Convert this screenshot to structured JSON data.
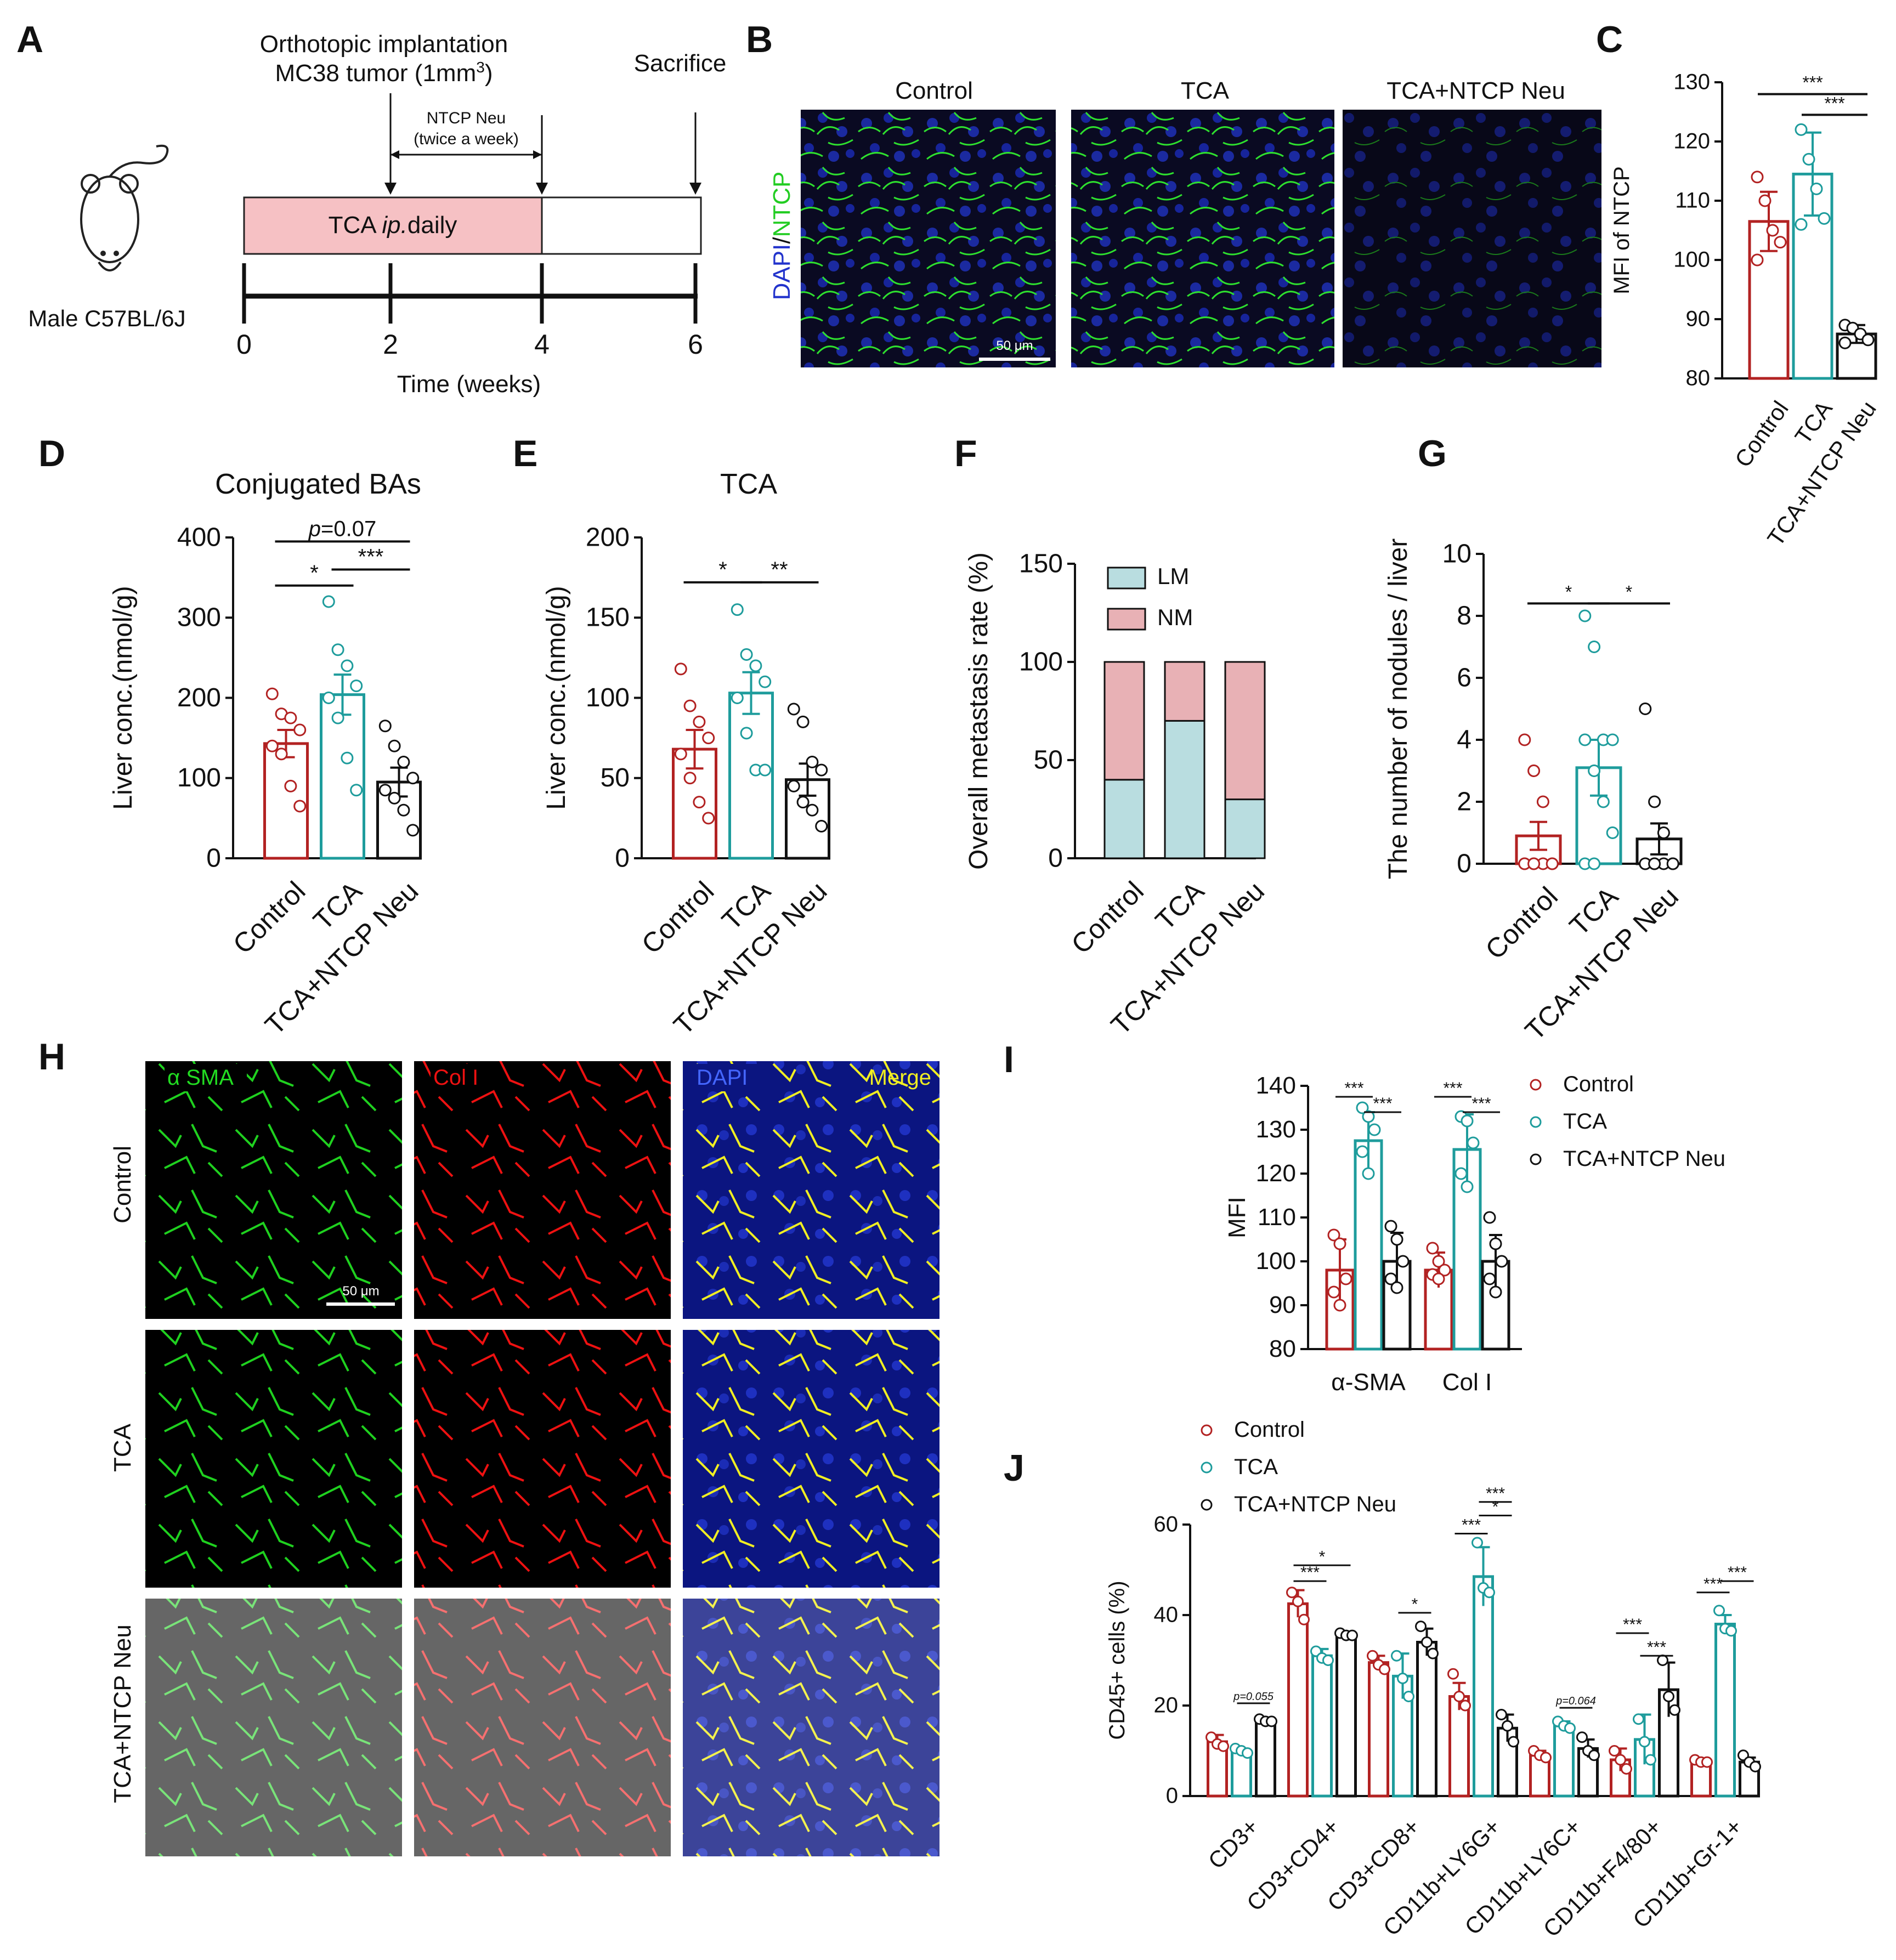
{
  "colors": {
    "control": "#b22222",
    "tca": "#1e9c9c",
    "neu": "#111111",
    "lm": "#b9dde0",
    "nm": "#e8b1b5",
    "pink_bar": "#f6c1c4",
    "dapi": "#2233cc",
    "ntcp": "#22cc22",
    "col": "#ee1111",
    "merge": "#f0ee22"
  },
  "panels": {
    "A": {
      "letter": "A",
      "impl_line1": "Orthotopic implantation",
      "impl_line2": "MC38 tumor (1mm",
      "impl_sup": "3",
      "impl_close": ")",
      "sacrifice": "Sacrifice",
      "neu_line1": "NTCP Neu",
      "neu_line2": "(twice a week)",
      "tca_bar_pre": "TCA ",
      "tca_bar_ital": "ip.",
      "tca_bar_post": "daily",
      "mouse": "Male C57BL/6J",
      "ticks": [
        "0",
        "2",
        "4",
        "6"
      ],
      "xlabel": "Time (weeks)",
      "mouse_icon": "mouse-icon"
    },
    "B": {
      "letter": "B",
      "col_titles": [
        "Control",
        "TCA",
        "TCA+NTCP Neu"
      ],
      "ylabel_dapi": "DAPI",
      "ylabel_slash": "/",
      "ylabel_ntcp": "NTCP",
      "scalebar": "50 μm"
    },
    "H": {
      "letter": "H",
      "rows": [
        "Control",
        "TCA",
        "TCA+NTCP Neu"
      ],
      "channel_asma": "α SMA",
      "channel_col": "Col I",
      "channel_dapi": "DAPI",
      "channel_merge": "Merge",
      "scalebar": "50 μm"
    }
  },
  "chart_data": [
    {
      "id": "C",
      "letter": "C",
      "type": "bar",
      "title": "",
      "categories": [
        "Control",
        "TCA",
        "TCA+NTCP Neu"
      ],
      "values": [
        106.5,
        114.5,
        87.5
      ],
      "errors": [
        5,
        7,
        1.5
      ],
      "points": [
        [
          114,
          110,
          105,
          103,
          100
        ],
        [
          122,
          117,
          112,
          107,
          106
        ],
        [
          89,
          88.5,
          87.5,
          86.5,
          86
        ]
      ],
      "ylabel": "MFI of NTCP",
      "ylim": [
        80,
        130
      ],
      "yticks": [
        "80",
        "90",
        "100",
        "110",
        "120",
        "130"
      ],
      "significance": [
        {
          "label": "***"
        },
        {
          "label": "***"
        }
      ]
    },
    {
      "id": "D",
      "letter": "D",
      "type": "bar",
      "title": "Conjugated BAs",
      "categories": [
        "Control",
        "TCA",
        "TCA+NTCP Neu"
      ],
      "values": [
        143,
        204,
        95
      ],
      "errors": [
        17,
        25,
        18
      ],
      "points": [
        [
          205,
          180,
          175,
          160,
          140,
          130,
          90,
          65
        ],
        [
          320,
          260,
          240,
          215,
          200,
          175,
          125,
          85
        ],
        [
          165,
          140,
          120,
          100,
          85,
          75,
          60,
          35
        ]
      ],
      "ylabel": "Liver conc.(nmol/g)",
      "ylim": [
        0,
        400
      ],
      "yticks": [
        "0",
        "100",
        "200",
        "300",
        "400"
      ],
      "significance": [
        {
          "label": "*"
        },
        {
          "label": "***"
        },
        {
          "label": "=0.07",
          "prefix": "p"
        }
      ]
    },
    {
      "id": "E",
      "letter": "E",
      "type": "bar",
      "title": "TCA",
      "categories": [
        "Control",
        "TCA",
        "TCA+NTCP Neu"
      ],
      "values": [
        68,
        103,
        49
      ],
      "errors": [
        12,
        13,
        10
      ],
      "points": [
        [
          118,
          95,
          85,
          75,
          65,
          50,
          35,
          25
        ],
        [
          155,
          127,
          120,
          110,
          100,
          78,
          55,
          55
        ],
        [
          93,
          85,
          60,
          55,
          45,
          35,
          30,
          20
        ]
      ],
      "ylabel": "Liver conc.(nmol/g)",
      "ylim": [
        0,
        200
      ],
      "yticks": [
        "0",
        "50",
        "100",
        "150",
        "200"
      ],
      "significance": [
        {
          "label": "*"
        },
        {
          "label": "**"
        }
      ]
    },
    {
      "id": "F",
      "letter": "F",
      "type": "bar",
      "stacked": true,
      "title": "",
      "categories": [
        "Control",
        "TCA",
        "TCA+NTCP Neu"
      ],
      "series": [
        {
          "name": "LM",
          "values": [
            40,
            70,
            30
          ]
        },
        {
          "name": "NM",
          "values": [
            60,
            30,
            70
          ]
        }
      ],
      "ylabel": "Overall metastasis rate (%)",
      "ylim": [
        0,
        150
      ],
      "yticks": [
        "0",
        "50",
        "100",
        "150"
      ]
    },
    {
      "id": "G",
      "letter": "G",
      "type": "bar",
      "title": "",
      "categories": [
        "Control",
        "TCA",
        "TCA+NTCP Neu"
      ],
      "values": [
        0.9,
        3.1,
        0.8
      ],
      "errors": [
        0.45,
        0.9,
        0.5
      ],
      "points": [
        [
          4,
          3,
          2,
          0,
          0,
          0,
          0,
          0,
          0,
          0
        ],
        [
          8,
          7,
          4,
          4,
          4,
          3,
          2,
          1,
          0,
          0
        ],
        [
          5,
          2,
          1,
          0,
          0,
          0,
          0,
          0,
          0,
          0
        ]
      ],
      "ylabel": "The number of nodules / liver",
      "ylim": [
        0,
        10
      ],
      "yticks": [
        "0",
        "2",
        "4",
        "6",
        "8",
        "10"
      ],
      "significance": [
        {
          "label": "*"
        },
        {
          "label": "*"
        }
      ]
    },
    {
      "id": "I",
      "letter": "I",
      "type": "bar",
      "title": "",
      "categories": [
        "α-SMA",
        "Col I"
      ],
      "series": [
        {
          "name": "Control",
          "values": [
            98,
            98
          ],
          "errors": [
            7,
            4
          ],
          "points": [
            [
              106,
              104,
              96,
              93,
              90
            ],
            [
              103,
              100,
              98,
              97,
              96
            ]
          ]
        },
        {
          "name": "TCA",
          "values": [
            127.5,
            125.5
          ],
          "errors": [
            6.5,
            8
          ],
          "points": [
            [
              135,
              133,
              130,
              125,
              120
            ],
            [
              133,
              132,
              127,
              120,
              117
            ]
          ]
        },
        {
          "name": "TCA+NTCP Neu",
          "values": [
            100,
            100
          ],
          "errors": [
            6.5,
            6
          ],
          "points": [
            [
              108,
              105,
              100,
              96,
              94
            ],
            [
              110,
              104,
              100,
              96,
              93
            ]
          ]
        }
      ],
      "ylabel": "MFI",
      "ylim": [
        80,
        140
      ],
      "yticks": [
        "80",
        "90",
        "100",
        "110",
        "120",
        "130",
        "140"
      ],
      "significance": [
        {
          "label": "***"
        },
        {
          "label": "***"
        },
        {
          "label": "***"
        },
        {
          "label": "***"
        }
      ]
    },
    {
      "id": "J",
      "letter": "J",
      "type": "bar",
      "title": "",
      "categories": [
        "CD3+",
        "CD3+CD4+",
        "CD3+CD8+",
        "CD11b+LY6G+",
        "CD11b+LY6C+",
        "CD11b+F4/80+",
        "CD11b+Gr-1+"
      ],
      "series": [
        {
          "name": "Control",
          "values": [
            12,
            42.5,
            29.5,
            22,
            9,
            8,
            7.5
          ],
          "errors": [
            1.5,
            3,
            1.5,
            3,
            1,
            2.5,
            0.5
          ],
          "points": [
            [
              13,
              11.5,
              11
            ],
            [
              45,
              43,
              39
            ],
            [
              31,
              29,
              28
            ],
            [
              27,
              22,
              20
            ],
            [
              10,
              9,
              8.5
            ],
            [
              10,
              8,
              6
            ],
            [
              8,
              7.5,
              7.5
            ]
          ]
        },
        {
          "name": "TCA",
          "values": [
            10,
            31,
            26.5,
            48.5,
            15.5,
            12.5,
            38
          ],
          "errors": [
            0.5,
            1.5,
            5,
            6.5,
            1,
            5.5,
            2
          ],
          "points": [
            [
              10.5,
              10,
              9.5
            ],
            [
              32,
              30.5,
              30
            ],
            [
              31,
              26,
              22
            ],
            [
              56,
              46,
              45
            ],
            [
              16.5,
              15.5,
              15
            ],
            [
              17,
              12,
              8
            ],
            [
              41,
              37,
              36.5
            ]
          ]
        },
        {
          "name": "TCA+NTCP Neu",
          "values": [
            16.5,
            35.5,
            34,
            15,
            10.5,
            23.5,
            7.5
          ],
          "errors": [
            0.5,
            0.5,
            3,
            3,
            2,
            6,
            1
          ],
          "points": [
            [
              17,
              16.5,
              16.5
            ],
            [
              36,
              35.5,
              35.5
            ],
            [
              37.5,
              34,
              31.5
            ],
            [
              18,
              15.5,
              12
            ],
            [
              13,
              10,
              9
            ],
            [
              30,
              22,
              19
            ],
            [
              9,
              7.5,
              6.5
            ]
          ]
        }
      ],
      "ylabel": "CD45+ cells (%)",
      "ylim": [
        0,
        60
      ],
      "yticks": [
        "0",
        "20",
        "40",
        "60"
      ],
      "significance": [
        {
          "label": "=0.055",
          "prefix": "p"
        },
        {
          "label": "***"
        },
        {
          "label": "*"
        },
        {
          "label": "*"
        },
        {
          "label": "***"
        },
        {
          "label": "*"
        },
        {
          "label": "***"
        },
        {
          "label": "=0.064",
          "prefix": "p"
        },
        {
          "label": "***"
        },
        {
          "label": "***"
        },
        {
          "label": "***"
        },
        {
          "label": "***"
        }
      ]
    }
  ]
}
